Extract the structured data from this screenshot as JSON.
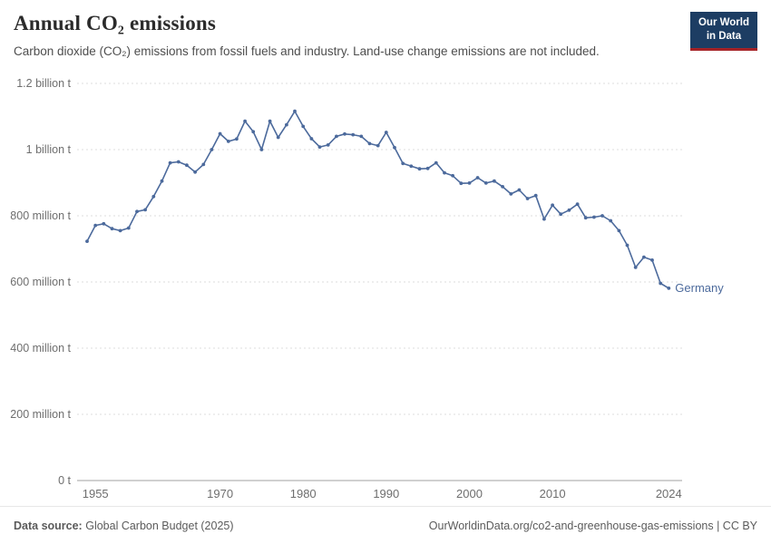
{
  "header": {
    "title": "Annual CO₂ emissions",
    "subtitle": "Carbon dioxide (CO₂) emissions from fossil fuels and industry. Land-use change emissions are not included.",
    "logo": {
      "line1": "Our World",
      "line2": "in Data",
      "bg_color": "#1d3d63",
      "accent_color": "#a52327"
    }
  },
  "chart_data": {
    "type": "line",
    "title": "Annual CO₂ emissions",
    "xlabel": "",
    "ylabel": "",
    "unit": "million tonnes",
    "grid": "horizontal-dashed",
    "legend_position": "end-of-line-label",
    "xlim": [
      1952.8,
      2025.6
    ],
    "ylim": [
      0,
      1200
    ],
    "xticks": [
      1955,
      1970,
      1980,
      1990,
      2000,
      2010,
      2024
    ],
    "yticks": [
      {
        "value": 0,
        "label": "0 t"
      },
      {
        "value": 200,
        "label": "200 million t"
      },
      {
        "value": 400,
        "label": "400 million t"
      },
      {
        "value": 600,
        "label": "600 million t"
      },
      {
        "value": 800,
        "label": "800 million t"
      },
      {
        "value": 1000,
        "label": "1 billion t"
      },
      {
        "value": 1200,
        "label": "1.2 billion t"
      }
    ],
    "series": [
      {
        "name": "Germany",
        "color": "#4C6A9C",
        "x": [
          1954,
          1955,
          1956,
          1957,
          1958,
          1959,
          1960,
          1961,
          1962,
          1963,
          1964,
          1965,
          1966,
          1967,
          1968,
          1969,
          1970,
          1971,
          1972,
          1973,
          1974,
          1975,
          1976,
          1977,
          1978,
          1979,
          1980,
          1981,
          1982,
          1983,
          1984,
          1985,
          1986,
          1987,
          1988,
          1989,
          1990,
          1991,
          1992,
          1993,
          1994,
          1995,
          1996,
          1997,
          1998,
          1999,
          2000,
          2001,
          2002,
          2003,
          2004,
          2005,
          2006,
          2007,
          2008,
          2009,
          2010,
          2011,
          2012,
          2013,
          2014,
          2015,
          2016,
          2017,
          2018,
          2019,
          2020,
          2021,
          2022,
          2023,
          2024
        ],
        "values": [
          723,
          771,
          776,
          761,
          755,
          763,
          813,
          818,
          858,
          905,
          960,
          963,
          953,
          932,
          955,
          1000,
          1048,
          1025,
          1032,
          1086,
          1054,
          1000,
          1086,
          1037,
          1075,
          1116,
          1070,
          1033,
          1008,
          1014,
          1040,
          1047,
          1045,
          1040,
          1018,
          1012,
          1052,
          1006,
          958,
          950,
          942,
          943,
          960,
          930,
          921,
          898,
          899,
          915,
          899,
          905,
          888,
          866,
          878,
          852,
          861,
          790,
          832,
          805,
          817,
          835,
          794,
          796,
          800,
          785,
          755,
          711,
          644,
          675,
          666,
          596,
          581
        ]
      }
    ]
  },
  "footer": {
    "source_label": "Data source:",
    "source_value": "Global Carbon Budget (2025)",
    "credit": "OurWorldinData.org/co2-and-greenhouse-gas-emissions | CC BY"
  },
  "colors": {
    "gridline": "#dedede",
    "zero_line": "#a1a1a1",
    "tick_label": "#6e6e6e",
    "series_germany": "#4C6A9C"
  }
}
